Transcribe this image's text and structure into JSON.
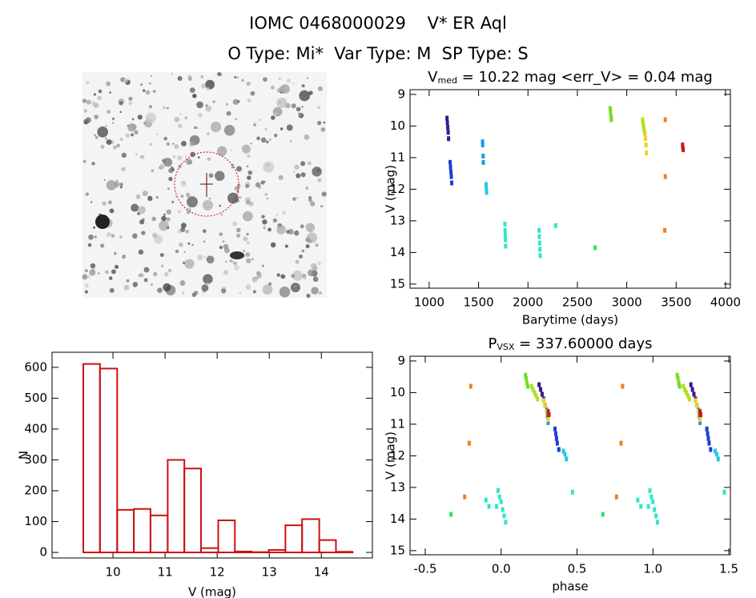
{
  "header": {
    "title": "IOMC 0468000029    V* ER Aql",
    "subtitle": "O Type: Mi*  Var Type: M  SP Type: S"
  },
  "chart_data": [
    {
      "type": "scatter",
      "title": "V",
      "title_sub": "med",
      "title_rest": " = 10.22 mag <err_V> = 0.04 mag",
      "xlabel": "Barytime (days)",
      "ylabel": "V (mag)",
      "xlim": [
        806,
        4049
      ],
      "xticks": [
        1000,
        1500,
        2000,
        2500,
        3000,
        3500,
        4000
      ],
      "ylim": [
        15.13,
        8.85
      ],
      "yticks": [
        9,
        10,
        11,
        12,
        13,
        14,
        15
      ],
      "series": [
        {
          "color": "#3a1a8a",
          "x": [
            1180,
            1184,
            1188,
            1192,
            1196
          ],
          "values": [
            9.75,
            9.9,
            10.05,
            10.2,
            10.4
          ]
        },
        {
          "color": "#1a3fd0",
          "x": [
            1212,
            1216,
            1220,
            1224,
            1228
          ],
          "values": [
            11.15,
            11.3,
            11.45,
            11.6,
            11.8
          ]
        },
        {
          "color": "#1f9be0",
          "x": [
            1540,
            1542,
            1546,
            1548
          ],
          "values": [
            10.5,
            10.6,
            10.95,
            11.15
          ]
        },
        {
          "color": "#28c8e8",
          "x": [
            1576,
            1578,
            1582
          ],
          "values": [
            11.85,
            11.95,
            12.1
          ]
        },
        {
          "color": "#2ee8c8",
          "x": [
            1766,
            1768,
            1770,
            1772,
            1774,
            2112,
            2115,
            2118,
            2121,
            2124,
            2280
          ],
          "values": [
            13.1,
            13.3,
            13.45,
            13.6,
            13.8,
            13.3,
            13.5,
            13.7,
            13.9,
            14.1,
            13.15
          ]
        },
        {
          "color": "#30e070",
          "x": [
            2680
          ],
          "values": [
            13.85
          ]
        },
        {
          "color": "#70e020",
          "x": [
            2832,
            2836,
            2840,
            2844
          ],
          "values": [
            9.45,
            9.55,
            9.7,
            9.8
          ]
        },
        {
          "color": "#b0e020",
          "x": [
            3160,
            3165,
            3170,
            3175,
            3180
          ],
          "values": [
            9.8,
            9.9,
            10.0,
            10.1,
            10.2
          ]
        },
        {
          "color": "#f0d020",
          "x": [
            3185,
            3190,
            3195,
            3200
          ],
          "values": [
            10.25,
            10.4,
            10.6,
            10.85
          ]
        },
        {
          "color": "#f08020",
          "x": [
            3390,
            3390,
            3385
          ],
          "values": [
            9.8,
            11.6,
            13.3
          ]
        },
        {
          "color": "#d01818",
          "x": [
            3565,
            3568,
            3572
          ],
          "values": [
            10.6,
            10.7,
            10.75
          ]
        }
      ]
    },
    {
      "type": "histogram",
      "xlabel": "V (mag)",
      "ylabel": "N",
      "color": "#cc1111",
      "bins": [
        9.43,
        9.75,
        10.08,
        10.4,
        10.72,
        11.05,
        11.37,
        11.69,
        12.02,
        12.34,
        12.66,
        12.99,
        13.31,
        13.63,
        13.96,
        14.28,
        14.6
      ],
      "values": [
        611,
        596,
        138,
        141,
        120,
        300,
        272,
        14,
        104,
        3,
        1,
        8,
        88,
        108,
        40,
        2
      ],
      "xlim": [
        8.83,
        14.98
      ],
      "xticks": [
        10,
        11,
        12,
        13,
        14
      ],
      "ylim": [
        -18,
        649
      ],
      "yticks": [
        0,
        100,
        200,
        300,
        400,
        500,
        600
      ]
    },
    {
      "type": "scatter",
      "title": "P",
      "title_sub": "VSX",
      "title_rest": " = 337.60000 days",
      "xlabel": "phase",
      "ylabel": "V (mag)",
      "xlim": [
        -0.6,
        1.51
      ],
      "xticks": [
        -0.5,
        {
          "value": 0,
          "label": "0.0"
        },
        0.5,
        {
          "value": 1,
          "label": "1.0"
        },
        1.5
      ],
      "ylim": [
        15.13,
        8.85
      ],
      "yticks": [
        9,
        10,
        11,
        12,
        13,
        14,
        15
      ],
      "series": [
        {
          "color": "#3a1a8a",
          "x": [
            0.25,
            0.26,
            0.27,
            0.28,
            0.29,
            1.25,
            1.26,
            1.27,
            1.28,
            1.29
          ],
          "values": [
            9.75,
            9.9,
            10.05,
            10.2,
            10.4,
            9.75,
            9.9,
            10.05,
            10.2,
            10.4
          ]
        },
        {
          "color": "#1a3fd0",
          "x": [
            0.355,
            0.36,
            0.365,
            0.37,
            0.38,
            1.355,
            1.36,
            1.365,
            1.37,
            1.38
          ],
          "values": [
            11.15,
            11.3,
            11.45,
            11.6,
            11.8,
            11.15,
            11.3,
            11.45,
            11.6,
            11.8
          ]
        },
        {
          "color": "#1f9be0",
          "x": [
            0.3,
            0.305,
            0.31,
            1.3,
            1.305,
            1.31
          ],
          "values": [
            10.55,
            10.75,
            10.95,
            10.55,
            10.75,
            10.95
          ]
        },
        {
          "color": "#28c8e8",
          "x": [
            0.41,
            0.42,
            0.43,
            1.41,
            1.42,
            1.43
          ],
          "values": [
            11.85,
            11.95,
            12.1,
            11.85,
            11.95,
            12.1
          ]
        },
        {
          "color": "#2ee8c8",
          "x": [
            -0.02,
            -0.01,
            0.0,
            -0.03,
            0.01,
            0.02,
            0.03,
            0.47,
            -0.1,
            -0.08,
            0.98,
            0.99,
            1.0,
            0.97,
            1.01,
            1.02,
            1.03,
            1.47,
            0.9,
            0.92
          ],
          "values": [
            13.1,
            13.3,
            13.45,
            13.6,
            13.7,
            13.9,
            14.1,
            13.15,
            13.4,
            13.6,
            13.1,
            13.3,
            13.45,
            13.6,
            13.7,
            13.9,
            14.1,
            13.15,
            13.4,
            13.6
          ]
        },
        {
          "color": "#30e070",
          "x": [
            -0.33,
            0.67
          ],
          "values": [
            13.85,
            13.85
          ]
        },
        {
          "color": "#70e020",
          "x": [
            0.16,
            0.165,
            0.17,
            0.175,
            1.16,
            1.165,
            1.17,
            1.175
          ],
          "values": [
            9.45,
            9.55,
            9.7,
            9.8,
            9.45,
            9.55,
            9.7,
            9.8
          ]
        },
        {
          "color": "#b0e020",
          "x": [
            0.2,
            0.21,
            0.22,
            0.23,
            0.24,
            1.2,
            1.21,
            1.22,
            1.23,
            1.24
          ],
          "values": [
            9.8,
            9.9,
            10.0,
            10.1,
            10.2,
            9.8,
            9.9,
            10.0,
            10.1,
            10.2
          ]
        },
        {
          "color": "#f0d020",
          "x": [
            0.28,
            0.29,
            0.3,
            0.31,
            1.28,
            1.29,
            1.3,
            1.31
          ],
          "values": [
            10.25,
            10.4,
            10.6,
            10.85,
            10.25,
            10.4,
            10.6,
            10.85
          ]
        },
        {
          "color": "#f08020",
          "x": [
            -0.2,
            -0.21,
            -0.24,
            0.8,
            0.79,
            0.76
          ],
          "values": [
            9.8,
            11.6,
            13.3,
            9.8,
            11.6,
            13.3
          ]
        },
        {
          "color": "#d01818",
          "x": [
            0.31,
            0.315,
            1.31,
            1.315
          ],
          "values": [
            10.6,
            10.7,
            10.6,
            10.7
          ]
        }
      ]
    }
  ]
}
